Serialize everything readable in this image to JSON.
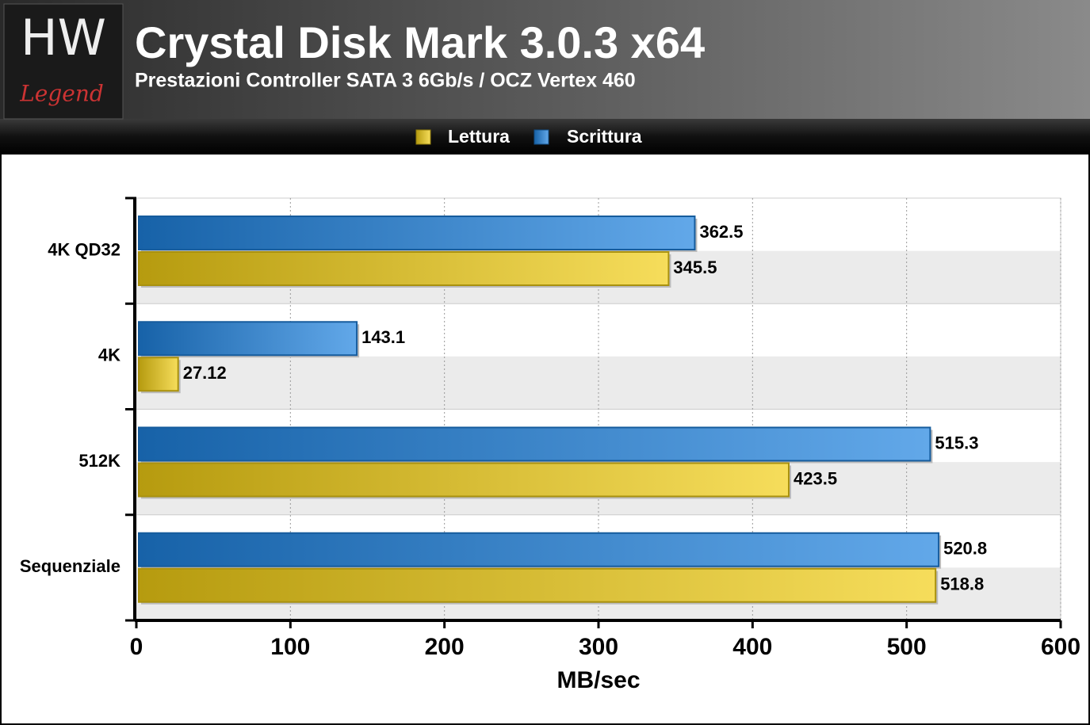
{
  "brand": "HW",
  "brand_sub": "Legend",
  "chart_data": {
    "type": "bar",
    "orientation": "horizontal",
    "title": "Crystal Disk Mark 3.0.3 x64",
    "subtitle": "Prestazioni Controller SATA 3 6Gb/s / OCZ Vertex 460",
    "x_label": "MB/sec",
    "categories": [
      "4K QD32",
      "4K",
      "512K",
      "Sequenziale"
    ],
    "series": [
      {
        "name": "Lettura",
        "color": "#f2cf14",
        "values": [
          345.5,
          27.12,
          423.5,
          518.8
        ]
      },
      {
        "name": "Scrittura",
        "color": "#1f83e0",
        "values": [
          362.5,
          143.1,
          515.3,
          520.8
        ]
      }
    ],
    "xlim": [
      0,
      600
    ],
    "xticks": [
      0,
      100,
      200,
      300,
      400,
      500,
      600
    ],
    "grid": true,
    "legend": "top"
  }
}
